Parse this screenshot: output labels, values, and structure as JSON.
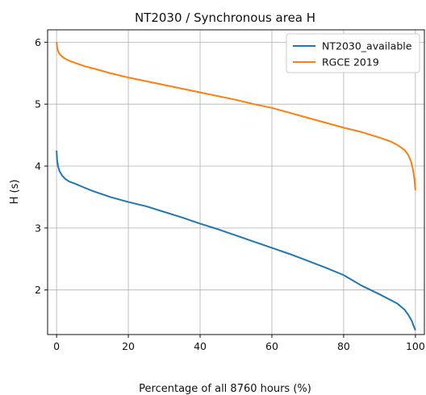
{
  "chart_data": {
    "type": "line",
    "title": "NT2030 / Synchronous area H",
    "xlabel": "Percentage of all 8760 hours (%)",
    "ylabel": "H (s)",
    "xlim": [
      -2.5,
      102.5
    ],
    "ylim": [
      1.28,
      6.2
    ],
    "xticks": [
      0,
      20,
      40,
      60,
      80,
      100
    ],
    "yticks": [
      2,
      3,
      4,
      5,
      6
    ],
    "grid": true,
    "legend_position": "top-right",
    "series": [
      {
        "name": "NT2030_available",
        "color": "#1f77b4",
        "x": [
          0,
          0.15,
          0.4,
          0.8,
          1.5,
          2.5,
          3.5,
          5,
          7,
          10,
          15,
          20,
          25,
          30,
          35,
          40,
          45,
          50,
          55,
          60,
          65,
          70,
          75,
          80,
          85,
          90,
          93,
          95,
          97,
          98,
          99,
          99.5,
          100
        ],
        "y": [
          4.25,
          4.1,
          4.0,
          3.92,
          3.85,
          3.79,
          3.75,
          3.72,
          3.67,
          3.6,
          3.5,
          3.42,
          3.35,
          3.26,
          3.17,
          3.07,
          2.98,
          2.88,
          2.78,
          2.68,
          2.58,
          2.47,
          2.36,
          2.24,
          2.07,
          1.93,
          1.84,
          1.78,
          1.68,
          1.6,
          1.5,
          1.42,
          1.35
        ]
      },
      {
        "name": "RGCE 2019",
        "color": "#ff7f0e",
        "x": [
          0,
          0.15,
          0.4,
          0.8,
          1.5,
          2.5,
          4,
          6,
          8,
          10,
          15,
          20,
          25,
          30,
          35,
          40,
          45,
          50,
          55,
          60,
          65,
          70,
          75,
          80,
          85,
          90,
          93,
          95,
          97,
          98,
          98.8,
          99.3,
          99.7,
          100
        ],
        "y": [
          6.0,
          5.92,
          5.86,
          5.81,
          5.77,
          5.73,
          5.69,
          5.65,
          5.61,
          5.58,
          5.5,
          5.43,
          5.37,
          5.31,
          5.25,
          5.19,
          5.13,
          5.07,
          5.0,
          4.94,
          4.86,
          4.78,
          4.7,
          4.62,
          4.55,
          4.46,
          4.4,
          4.34,
          4.26,
          4.18,
          4.07,
          3.95,
          3.8,
          3.61
        ]
      }
    ]
  }
}
